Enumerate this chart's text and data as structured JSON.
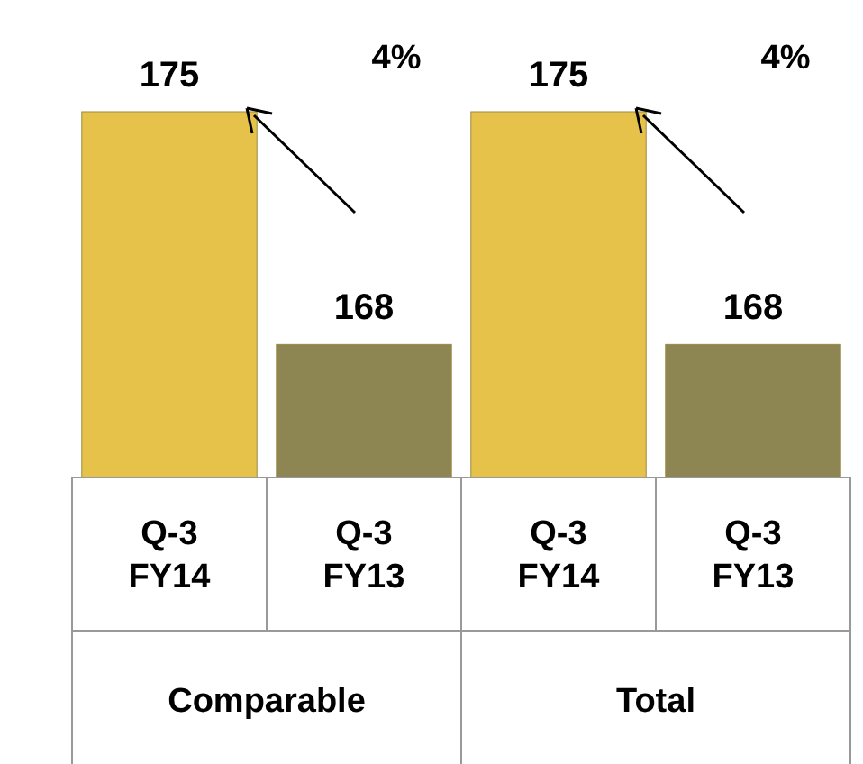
{
  "chart_data": {
    "type": "bar",
    "categories": [
      "Q-3 FY14",
      "Q-3 FY13",
      "Q-3 FY14",
      "Q-3 FY13"
    ],
    "values": [
      175,
      168,
      175,
      168
    ],
    "colors": [
      "#e6c24a",
      "#8e8652",
      "#e6c24a",
      "#8e8652"
    ],
    "ylim": [
      164,
      175
    ],
    "tick_labels": "x",
    "data_labels": true,
    "annotations": [
      "Comparable",
      "Total",
      "4%",
      "4%"
    ]
  }
}
